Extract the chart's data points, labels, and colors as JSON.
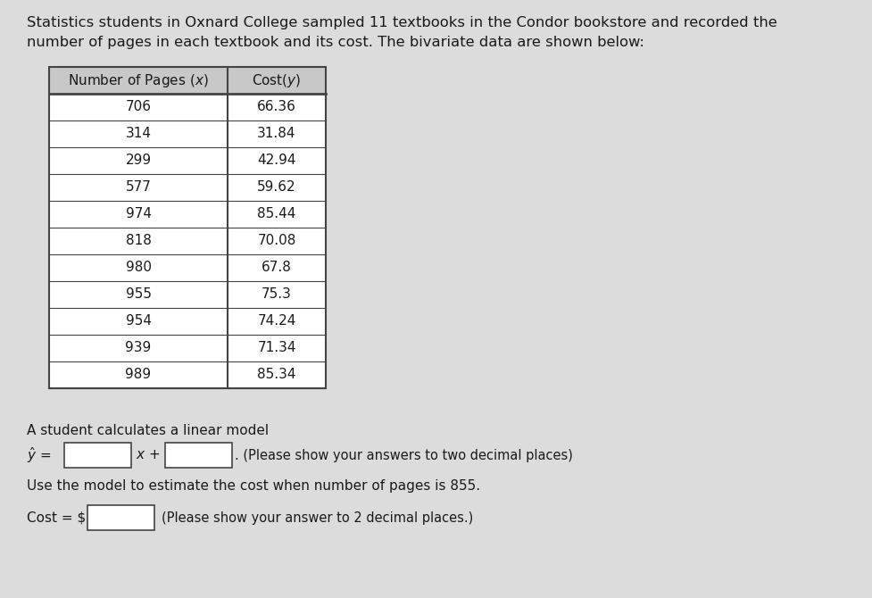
{
  "title_line1": "Statistics students in Oxnard College sampled 11 textbooks in the Condor bookstore and recorded the",
  "title_line2": "number of pages in each textbook and its cost. The bivariate data are shown below:",
  "pages": [
    706,
    314,
    299,
    577,
    974,
    818,
    980,
    955,
    954,
    939,
    989
  ],
  "costs": [
    66.36,
    31.84,
    42.94,
    59.62,
    85.44,
    70.08,
    67.8,
    75.3,
    74.24,
    71.34,
    85.34
  ],
  "col1_header": "Number of Pages (x)",
  "col2_header": "Cost(y)",
  "linear_model_text": "A student calculates a linear model",
  "use_model_text": "Use the model to estimate the cost when number of pages is 855.",
  "cost_note": "(Please show your answer to 2 decimal places.)",
  "dot_note": ". (Please show your answers to two decimal places)",
  "bg_color": "#dcdcdc",
  "white": "#ffffff",
  "header_bg": "#c8c8c8",
  "text_color": "#1a1a1a",
  "border_color": "#444444",
  "title_fontsize": 11.8,
  "body_fontsize": 11.0,
  "table_fontsize": 11.0
}
